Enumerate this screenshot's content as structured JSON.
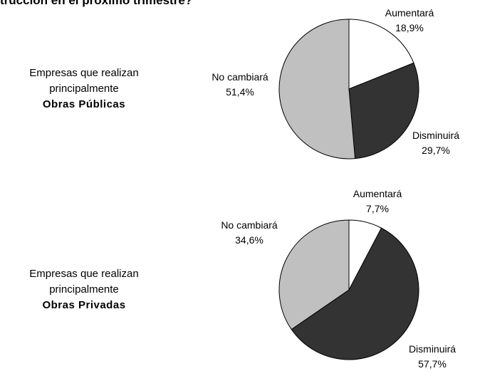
{
  "title": "trucción en el próximo trimestre?",
  "chart_data": [
    {
      "type": "pie",
      "group_label": [
        "Empresas que realizan",
        "principalmente",
        "Obras Públicas"
      ],
      "categories": [
        "Aumentará",
        "Disminuirá",
        "No cambiará"
      ],
      "values": [
        18.9,
        29.7,
        51.4
      ],
      "value_labels": [
        "18,9%",
        "29,7%",
        "51,4%"
      ],
      "colors": [
        "#ffffff",
        "#333333",
        "#c0c0c0"
      ]
    },
    {
      "type": "pie",
      "group_label": [
        "Empresas que realizan",
        "principalmente",
        "Obras Privadas"
      ],
      "categories": [
        "Aumentará",
        "Disminuirá",
        "No cambiará"
      ],
      "values": [
        7.7,
        57.7,
        34.6
      ],
      "value_labels": [
        "7,7%",
        "57,7%",
        "34,6%"
      ],
      "colors": [
        "#ffffff",
        "#333333",
        "#c0c0c0"
      ]
    }
  ]
}
